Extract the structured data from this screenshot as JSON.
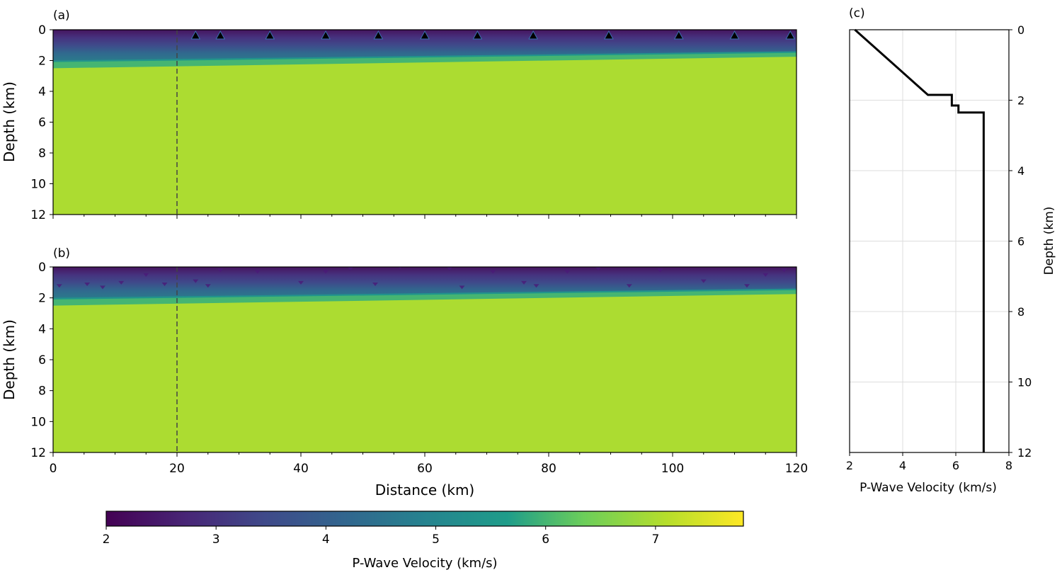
{
  "charts": [
    {
      "panel_label": "(a)",
      "type": "heatmap",
      "xlabel": "",
      "ylabel": "Depth (km)",
      "xlim": [
        0,
        120
      ],
      "ylim": [
        12,
        0
      ],
      "x_ticks": [
        "0",
        "20",
        "40",
        "60",
        "80",
        "100",
        "120"
      ],
      "y_ticks": [
        "0",
        "2",
        "4",
        "6",
        "8",
        "10",
        "12"
      ],
      "x_tick_labels_visible": false,
      "layers": {
        "x": [
          0,
          120
        ],
        "low_velocity_top": 2.0,
        "bottom_depth_of_gradient": [
          2.0,
          1.4
        ],
        "transition_depth": [
          2.1,
          1.5
        ],
        "basement_top_depth": [
          2.5,
          1.75
        ],
        "surface_velocity_km_s": 2.2,
        "transition_velocity_km_s": 6.0,
        "basement_velocity_km_s": 7.0
      },
      "dashed_line_x": 20,
      "stations_x": [
        23,
        27,
        35,
        44,
        52.5,
        60,
        68.5,
        77.5,
        89.7,
        101,
        110,
        119
      ]
    },
    {
      "panel_label": "(b)",
      "type": "heatmap",
      "xlabel": "Distance (km)",
      "ylabel": "Depth (km)",
      "xlim": [
        0,
        120
      ],
      "ylim": [
        12,
        0
      ],
      "x_ticks": [
        "0",
        "20",
        "40",
        "60",
        "80",
        "100",
        "120"
      ],
      "y_ticks": [
        "0",
        "2",
        "4",
        "6",
        "8",
        "10",
        "12"
      ],
      "x_tick_labels_visible": true,
      "layers": {
        "x": [
          0,
          120
        ],
        "bottom_depth_of_gradient": [
          2.0,
          1.4
        ],
        "transition_depth": [
          2.1,
          1.5
        ],
        "basement_top_depth": [
          2.5,
          1.75
        ],
        "surface_velocity_km_s": 2.2,
        "transition_velocity_km_s": 6.0,
        "basement_velocity_km_s": 7.0
      },
      "dashed_line_x": 20,
      "anomalies": [
        {
          "x": 1,
          "z": 1.2
        },
        {
          "x": 5.5,
          "z": 1.1
        },
        {
          "x": 8,
          "z": 1.3
        },
        {
          "x": 11,
          "z": 1.0
        },
        {
          "x": 15,
          "z": 0.5
        },
        {
          "x": 18,
          "z": 1.1
        },
        {
          "x": 23,
          "z": 0.9
        },
        {
          "x": 25,
          "z": 1.2
        },
        {
          "x": 27,
          "z": 0.2
        },
        {
          "x": 33,
          "z": 0.3
        },
        {
          "x": 40,
          "z": 1.0
        },
        {
          "x": 44,
          "z": 0.3
        },
        {
          "x": 48,
          "z": 0.1
        },
        {
          "x": 52,
          "z": 1.1
        },
        {
          "x": 56,
          "z": 0.0
        },
        {
          "x": 64,
          "z": 0.1
        },
        {
          "x": 66,
          "z": 1.3
        },
        {
          "x": 71,
          "z": 0.3
        },
        {
          "x": 76,
          "z": 1.0
        },
        {
          "x": 78,
          "z": 1.2
        },
        {
          "x": 83,
          "z": 0.3
        },
        {
          "x": 88,
          "z": 0.1
        },
        {
          "x": 93,
          "z": 1.2
        },
        {
          "x": 98,
          "z": 0.2
        },
        {
          "x": 105,
          "z": 0.9
        },
        {
          "x": 112,
          "z": 1.2
        },
        {
          "x": 115,
          "z": 0.5
        },
        {
          "x": 118,
          "z": 0.2
        }
      ]
    },
    {
      "panel_label": "(c)",
      "type": "line",
      "xlabel": "P-Wave Velocity (km/s)",
      "ylabel": "Depth (km)",
      "xlim": [
        2,
        8
      ],
      "ylim": [
        12,
        0
      ],
      "x_ticks": [
        "2",
        "4",
        "6",
        "8"
      ],
      "y_ticks": [
        "0",
        "2",
        "4",
        "6",
        "8",
        "10",
        "12"
      ],
      "grid": true,
      "series": [
        {
          "x": [
            2.2,
            4.95,
            5.85,
            5.85,
            6.1,
            6.1,
            7.05,
            7.05
          ],
          "y": [
            0,
            1.85,
            1.85,
            2.15,
            2.15,
            2.35,
            2.35,
            12
          ]
        }
      ]
    }
  ],
  "colorbar": {
    "label": "P-Wave Velocity (km/s)",
    "range": [
      2,
      7.8
    ],
    "ticks": [
      "2",
      "3",
      "4",
      "5",
      "6",
      "7"
    ],
    "colormap": "viridis"
  }
}
